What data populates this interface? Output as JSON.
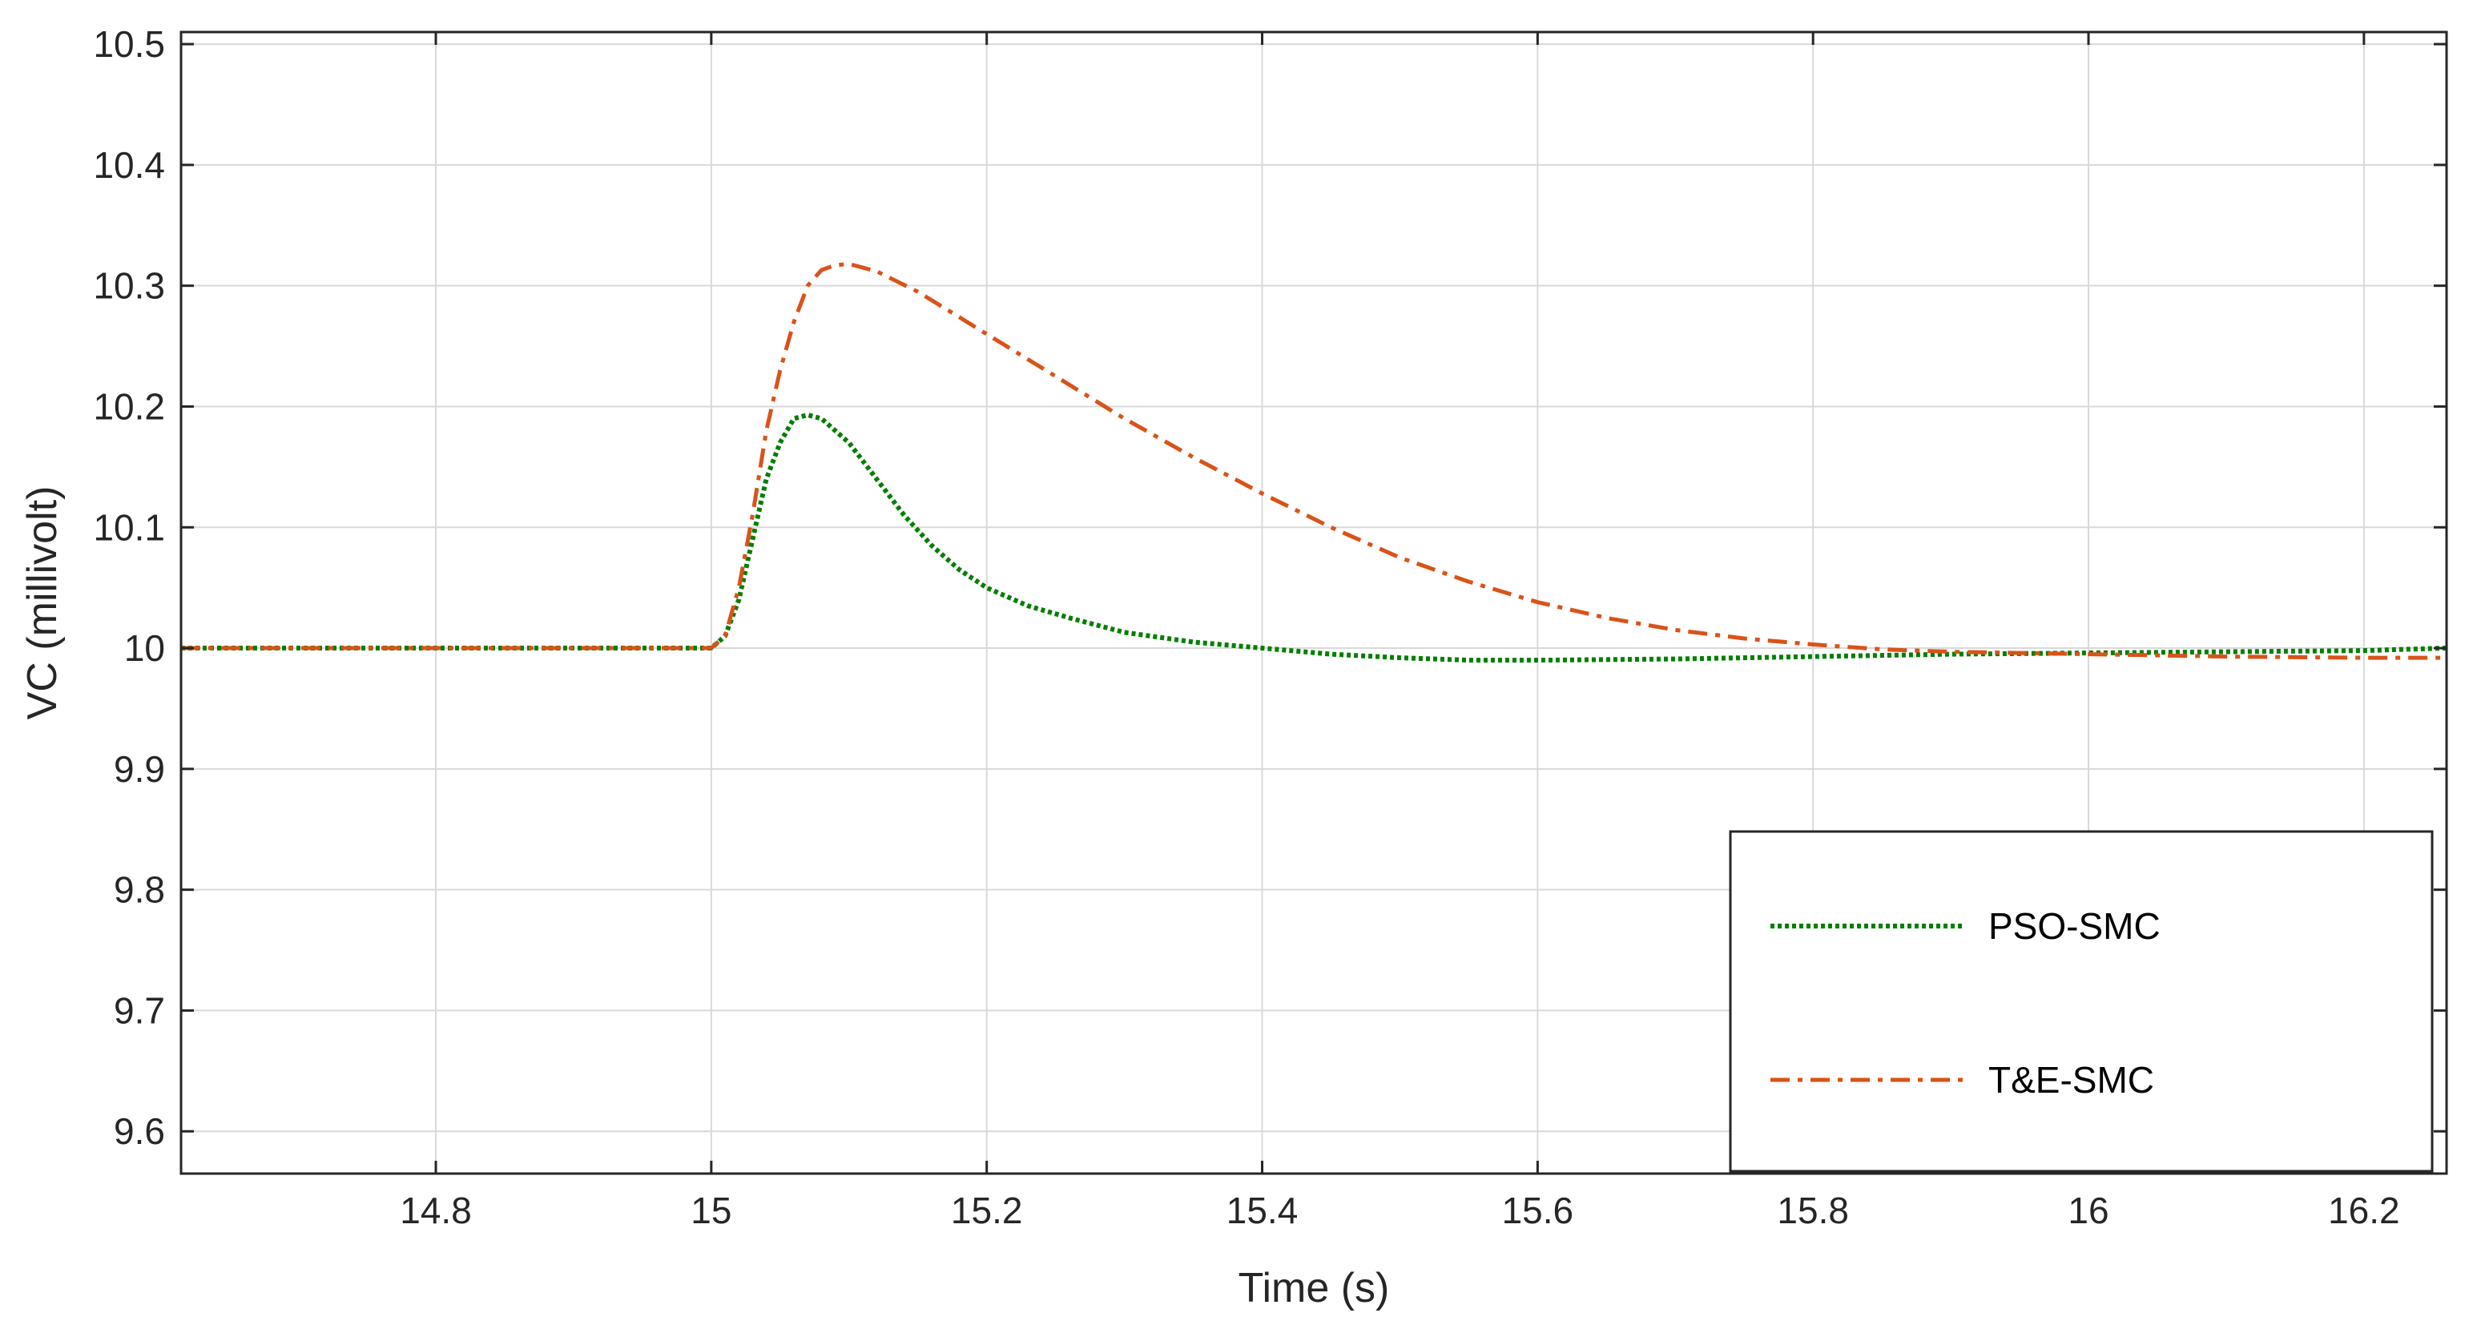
{
  "chart_data": {
    "type": "line",
    "title": "",
    "xlabel": "Time (s)",
    "ylabel": "VC (millivolt)",
    "xlim": [
      14.615,
      16.26
    ],
    "ylim": [
      9.565,
      10.51
    ],
    "xticks": [
      14.8,
      15,
      15.2,
      15.4,
      15.6,
      15.8,
      16,
      16.2
    ],
    "xtick_labels": [
      "14.8",
      "15",
      "15.2",
      "15.4",
      "15.6",
      "15.8",
      "16",
      "16.2"
    ],
    "yticks": [
      9.6,
      9.7,
      9.8,
      9.9,
      10,
      10.1,
      10.2,
      10.3,
      10.4,
      10.5
    ],
    "ytick_labels": [
      "9.6",
      "9.7",
      "9.8",
      "9.9",
      "10",
      "10.1",
      "10.2",
      "10.3",
      "10.4",
      "10.5"
    ],
    "grid": true,
    "legend_position": "bottom-right",
    "series": [
      {
        "name": "PSO-SMC",
        "color": "#007f00",
        "style": "dotted",
        "x": [
          14.615,
          15.0,
          15.01,
          15.02,
          15.03,
          15.04,
          15.05,
          15.06,
          15.07,
          15.08,
          15.09,
          15.1,
          15.12,
          15.14,
          15.16,
          15.18,
          15.2,
          15.23,
          15.26,
          15.3,
          15.35,
          15.4,
          15.45,
          15.5,
          15.55,
          15.6,
          15.7,
          15.8,
          15.9,
          16.0,
          16.1,
          16.2,
          16.26
        ],
        "y": [
          10.0,
          10.0,
          10.01,
          10.04,
          10.09,
          10.14,
          10.17,
          10.19,
          10.193,
          10.19,
          10.18,
          10.17,
          10.14,
          10.11,
          10.085,
          10.065,
          10.05,
          10.035,
          10.025,
          10.013,
          10.005,
          10.0,
          9.995,
          9.992,
          9.99,
          9.99,
          9.991,
          9.993,
          9.995,
          9.996,
          9.997,
          9.998,
          10.0
        ]
      },
      {
        "name": "T&E-SMC",
        "color": "#d95319",
        "style": "dashdot",
        "x": [
          14.615,
          15.0,
          15.01,
          15.02,
          15.03,
          15.04,
          15.05,
          15.06,
          15.07,
          15.08,
          15.09,
          15.1,
          15.12,
          15.15,
          15.2,
          15.25,
          15.3,
          15.35,
          15.4,
          15.45,
          15.5,
          15.55,
          15.6,
          15.65,
          15.7,
          15.75,
          15.8,
          15.85,
          15.9,
          16.0,
          16.1,
          16.2,
          16.26
        ],
        "y": [
          10.0,
          10.0,
          10.01,
          10.05,
          10.11,
          10.18,
          10.23,
          10.27,
          10.3,
          10.313,
          10.317,
          10.318,
          10.312,
          10.295,
          10.26,
          10.225,
          10.19,
          10.158,
          10.128,
          10.1,
          10.075,
          10.055,
          10.038,
          10.025,
          10.015,
          10.008,
          10.003,
          9.999,
          9.997,
          9.995,
          9.993,
          9.992,
          9.992
        ]
      }
    ]
  }
}
